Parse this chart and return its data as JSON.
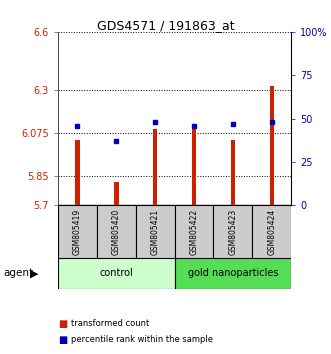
{
  "title": "GDS4571 / 191863_at",
  "samples": [
    "GSM805419",
    "GSM805420",
    "GSM805421",
    "GSM805422",
    "GSM805423",
    "GSM805424"
  ],
  "red_values": [
    6.04,
    5.82,
    6.095,
    6.1,
    6.04,
    6.32
  ],
  "blue_values": [
    46,
    37,
    48,
    46,
    47,
    48
  ],
  "y_min": 5.7,
  "y_max": 6.6,
  "y_ticks_red": [
    5.7,
    5.85,
    6.075,
    6.3,
    6.6
  ],
  "y_ticks_blue": [
    0,
    25,
    50,
    75,
    100
  ],
  "bar_color": "#cc2200",
  "dot_color": "#0000bb",
  "control_color": "#ccffcc",
  "gold_color": "#55dd55",
  "legend_red_label": "transformed count",
  "legend_blue_label": "percentile rank within the sample",
  "group_spans": [
    [
      0,
      2,
      "control",
      "#ccffcc"
    ],
    [
      3,
      5,
      "gold nanoparticles",
      "#55dd55"
    ]
  ]
}
